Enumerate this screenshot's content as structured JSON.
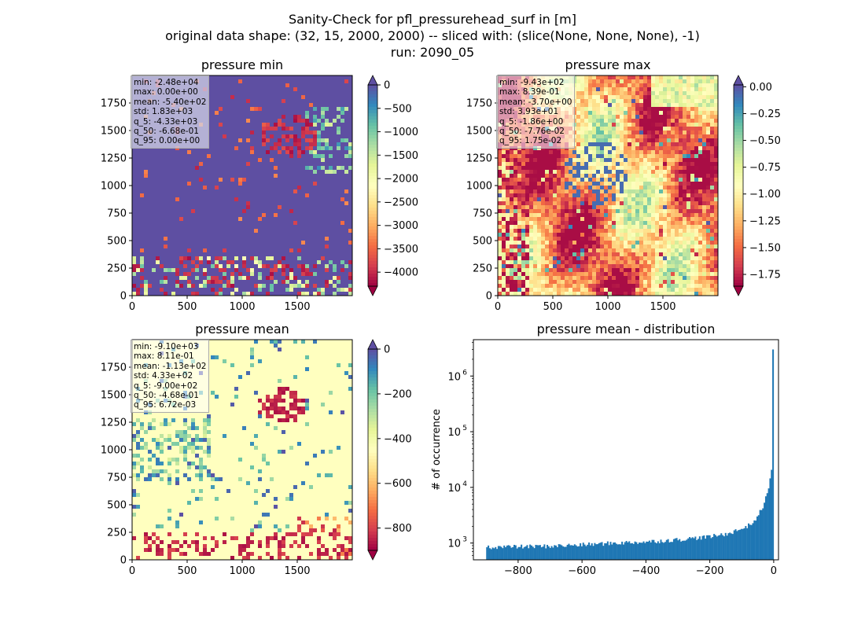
{
  "figure": {
    "suptitle_lines": [
      "Sanity-Check for pfl_pressurehead_surf in [m]",
      "original data shape: (32, 15, 2000, 2000) -- sliced with: (slice(None, None, None), -1)",
      "run: 2090_05"
    ]
  },
  "chart_data": [
    {
      "type": "heatmap",
      "title": "pressure min",
      "xticks": [
        0,
        500,
        1000,
        1500
      ],
      "yticks": [
        0,
        250,
        500,
        750,
        1000,
        1250,
        1500,
        1750
      ],
      "xlim": [
        0,
        2000
      ],
      "ylim": [
        0,
        2000
      ],
      "colorbar": {
        "ticks": [
          0,
          -500,
          -1000,
          -1500,
          -2000,
          -2500,
          -3000,
          -3500,
          -4000
        ],
        "tick_labels": [
          "0",
          "−500",
          "−1000",
          "−1500",
          "−2000",
          "−2500",
          "−3000",
          "−3500",
          "−4000"
        ],
        "vmin": -4300,
        "vmax": 0,
        "cmap": "Spectral",
        "extend": "both"
      },
      "stats": [
        "min: -2.48e+04",
        "max: 0.00e+00",
        "mean: -5.40e+02",
        "std: 1.83e+03",
        "q_5: -4.33e+03",
        "q_50: -6.68e-01",
        "q_95: 0.00e+00"
      ]
    },
    {
      "type": "heatmap",
      "title": "pressure max",
      "xticks": [
        0,
        500,
        1000,
        1500
      ],
      "yticks": [
        0,
        250,
        500,
        750,
        1000,
        1250,
        1500,
        1750
      ],
      "xlim": [
        0,
        2000
      ],
      "ylim": [
        0,
        2000
      ],
      "colorbar": {
        "ticks": [
          0.0,
          -0.25,
          -0.5,
          -0.75,
          -1.0,
          -1.25,
          -1.5,
          -1.75
        ],
        "tick_labels": [
          "0.00",
          "−0.25",
          "−0.50",
          "−0.75",
          "−1.00",
          "−1.25",
          "−1.50",
          "−1.75"
        ],
        "vmin": -1.86,
        "vmax": 0.0175,
        "cmap": "Spectral",
        "extend": "both"
      },
      "stats": [
        "min: -9.43e+02",
        "max: 8.39e-01",
        "mean: -3.70e+00",
        "std: 3.93e+01",
        "q_5: -1.86e+00",
        "q_50: -7.76e-02",
        "q_95: 1.75e-02"
      ]
    },
    {
      "type": "heatmap",
      "title": "pressure mean",
      "xticks": [
        0,
        500,
        1000,
        1500
      ],
      "yticks": [
        0,
        250,
        500,
        750,
        1000,
        1250,
        1500,
        1750
      ],
      "xlim": [
        0,
        2000
      ],
      "ylim": [
        0,
        2000
      ],
      "colorbar": {
        "ticks": [
          0,
          -200,
          -400,
          -600,
          -800
        ],
        "tick_labels": [
          "0",
          "−200",
          "−400",
          "−600",
          "−800"
        ],
        "vmin": -900,
        "vmax": 0.0067,
        "cmap": "Spectral",
        "extend": "both"
      },
      "stats": [
        "min: -9.10e+03",
        "max: 8.11e-01",
        "mean: -1.13e+02",
        "std: 4.33e+02",
        "q_5: -9.00e+02",
        "q_50: -4.68e-01",
        "q_95: 6.72e-03"
      ]
    },
    {
      "type": "bar",
      "title": "pressure mean - distribution",
      "ylabel": "# of occurrence",
      "yscale": "log",
      "xlim": [
        -940,
        15
      ],
      "ylim": [
        500,
        4500000
      ],
      "xticks": [
        -800,
        -600,
        -400,
        -200,
        0
      ],
      "xtick_labels": [
        "−800",
        "−600",
        "−400",
        "−200",
        "0"
      ],
      "yticks": [
        1000,
        10000,
        100000,
        1000000
      ],
      "ytick_labels": [
        "10",
        "10",
        "10",
        "10"
      ],
      "ytick_exponents": [
        "3",
        "4",
        "5",
        "6"
      ],
      "bar_color": "#1f77b4",
      "bin_range": [
        -900,
        0
      ],
      "nbins": 200,
      "profile_x": [
        -900,
        -800,
        -700,
        -600,
        -500,
        -400,
        -300,
        -200,
        -150,
        -100,
        -70,
        -50,
        -30,
        -20,
        -10,
        -5,
        -2,
        0
      ],
      "profile_y": [
        850,
        860,
        880,
        930,
        1000,
        1050,
        1150,
        1300,
        1450,
        1800,
        2200,
        3000,
        5000,
        8000,
        15000,
        22000,
        28000,
        3000000
      ]
    }
  ]
}
